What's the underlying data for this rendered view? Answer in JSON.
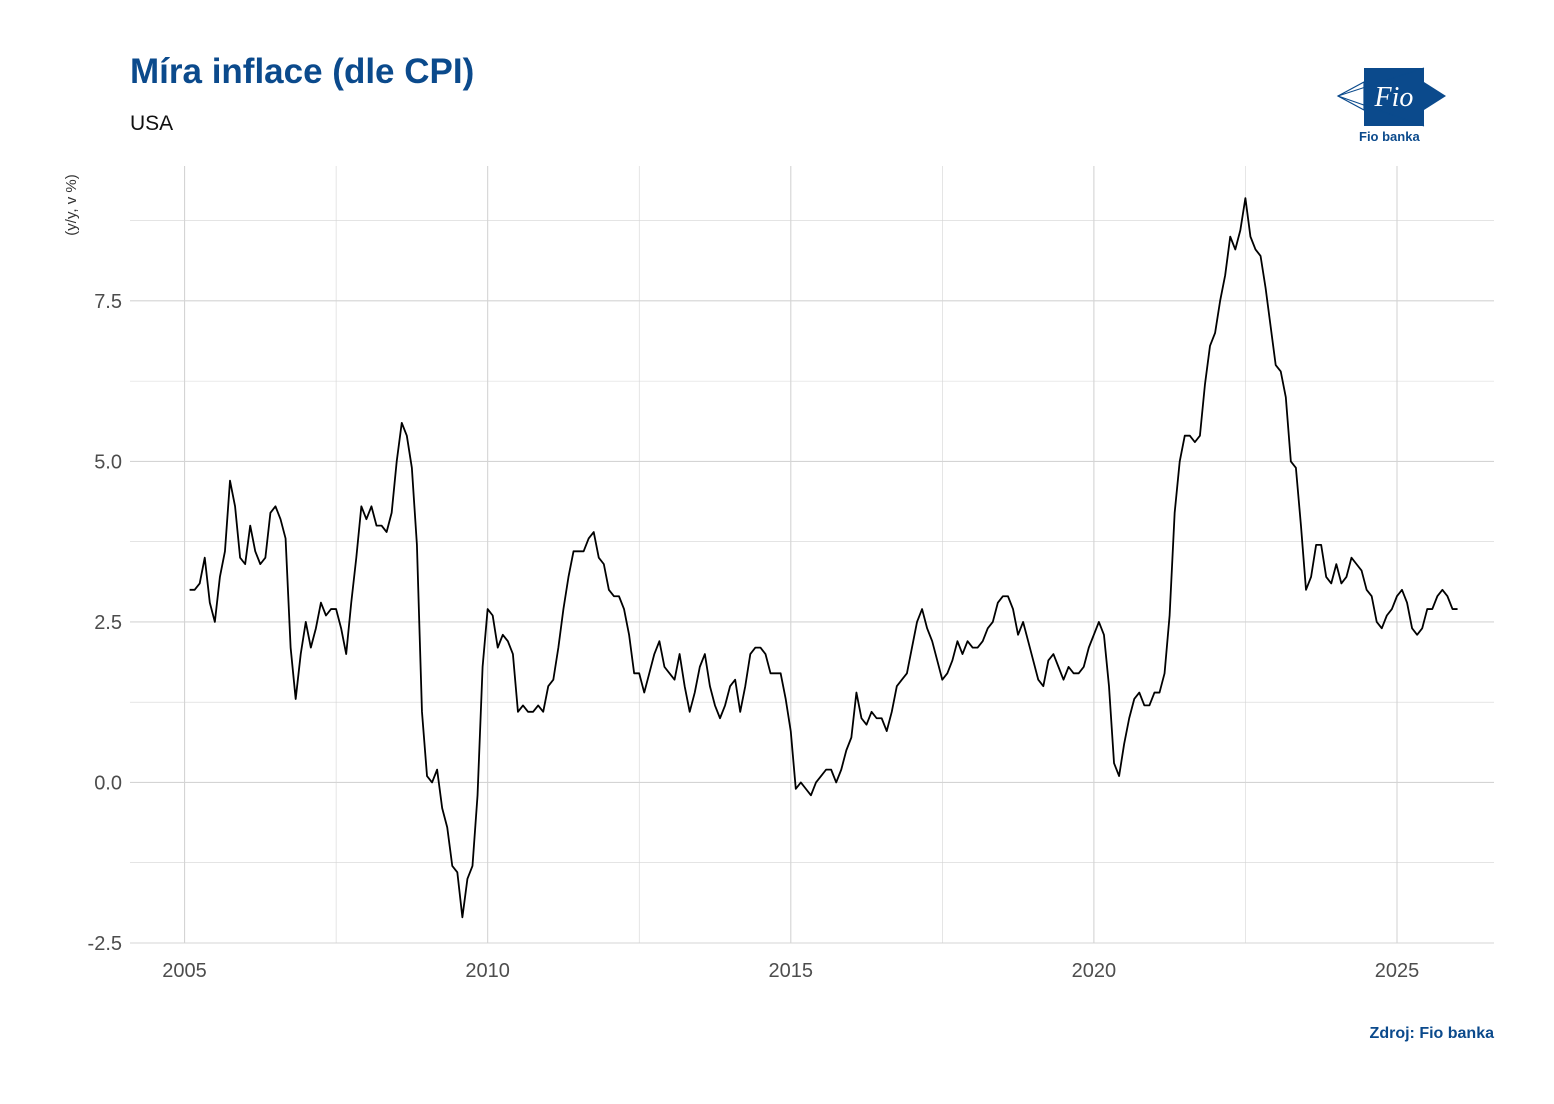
{
  "header": {
    "title": "Míra inflace (dle CPI)",
    "subtitle": "USA"
  },
  "logo": {
    "caption": "Fio banka",
    "mark_text": "Fio"
  },
  "source": "Zdroj: Fio banka",
  "colors": {
    "brand": "#0b4a8c",
    "line": "#000000",
    "grid": "#d4d4d4"
  },
  "chart_data": {
    "type": "line",
    "title": "Míra inflace (dle CPI)",
    "subtitle": "USA",
    "ylabel": "(y/y, v %)",
    "xlabel": "",
    "x_unit": "year",
    "xlim": [
      2004.1,
      2026.6
    ],
    "ylim": [
      -2.5,
      9.6
    ],
    "x_ticks": [
      2005,
      2010,
      2015,
      2020,
      2025
    ],
    "x_tick_labels": [
      "2005",
      "2010",
      "2015",
      "2020",
      "2025"
    ],
    "y_ticks": [
      -2.5,
      0,
      2.5,
      5,
      7.5
    ],
    "y_tick_labels": [
      "-2.5",
      "0.0",
      "2.5",
      "5.0",
      "7.5"
    ],
    "grid": true,
    "legend": "none",
    "series": [
      {
        "x_start": 2005.083,
        "x_step": 0.08333,
        "values": [
          3.0,
          3.0,
          3.1,
          3.5,
          2.8,
          2.5,
          3.2,
          3.6,
          4.7,
          4.3,
          3.5,
          3.4,
          4.0,
          3.6,
          3.4,
          3.5,
          4.2,
          4.3,
          4.1,
          3.8,
          2.1,
          1.3,
          2.0,
          2.5,
          2.1,
          2.4,
          2.8,
          2.6,
          2.7,
          2.7,
          2.4,
          2.0,
          2.8,
          3.5,
          4.3,
          4.1,
          4.3,
          4.0,
          4.0,
          3.9,
          4.2,
          5.0,
          5.6,
          5.4,
          4.9,
          3.7,
          1.1,
          0.1,
          0.0,
          0.2,
          -0.4,
          -0.7,
          -1.3,
          -1.4,
          -2.1,
          -1.5,
          -1.3,
          -0.2,
          1.8,
          2.7,
          2.6,
          2.1,
          2.3,
          2.2,
          2.0,
          1.1,
          1.2,
          1.1,
          1.1,
          1.2,
          1.1,
          1.5,
          1.6,
          2.1,
          2.7,
          3.2,
          3.6,
          3.6,
          3.6,
          3.8,
          3.9,
          3.5,
          3.4,
          3.0,
          2.9,
          2.9,
          2.7,
          2.3,
          1.7,
          1.7,
          1.4,
          1.7,
          2.0,
          2.2,
          1.8,
          1.7,
          1.6,
          2.0,
          1.5,
          1.1,
          1.4,
          1.8,
          2.0,
          1.5,
          1.2,
          1.0,
          1.2,
          1.5,
          1.6,
          1.1,
          1.5,
          2.0,
          2.1,
          2.1,
          2.0,
          1.7,
          1.7,
          1.7,
          1.3,
          0.8,
          -0.1,
          0.0,
          -0.1,
          -0.2,
          0.0,
          0.1,
          0.2,
          0.2,
          0.0,
          0.2,
          0.5,
          0.7,
          1.4,
          1.0,
          0.9,
          1.1,
          1.0,
          1.0,
          0.8,
          1.1,
          1.5,
          1.6,
          1.7,
          2.1,
          2.5,
          2.7,
          2.4,
          2.2,
          1.9,
          1.6,
          1.7,
          1.9,
          2.2,
          2.0,
          2.2,
          2.1,
          2.1,
          2.2,
          2.4,
          2.5,
          2.8,
          2.9,
          2.9,
          2.7,
          2.3,
          2.5,
          2.2,
          1.9,
          1.6,
          1.5,
          1.9,
          2.0,
          1.8,
          1.6,
          1.8,
          1.7,
          1.7,
          1.8,
          2.1,
          2.3,
          2.5,
          2.3,
          1.5,
          0.3,
          0.1,
          0.6,
          1.0,
          1.3,
          1.4,
          1.2,
          1.2,
          1.4,
          1.4,
          1.7,
          2.6,
          4.2,
          5.0,
          5.4,
          5.4,
          5.3,
          5.4,
          6.2,
          6.8,
          7.0,
          7.5,
          7.9,
          8.5,
          8.3,
          8.6,
          9.1,
          8.5,
          8.3,
          8.2,
          7.7,
          7.1,
          6.5,
          6.4,
          6.0,
          5.0,
          4.9,
          4.0,
          3.0,
          3.2,
          3.7,
          3.7,
          3.2,
          3.1,
          3.4,
          3.1,
          3.2,
          3.5,
          3.4,
          3.3,
          3.0,
          2.9,
          2.5,
          2.4,
          2.6,
          2.7,
          2.9,
          3.0,
          2.8,
          2.4,
          2.3,
          2.4,
          2.7,
          2.7,
          2.9,
          3.0,
          2.9,
          2.7,
          2.7
        ]
      }
    ]
  }
}
